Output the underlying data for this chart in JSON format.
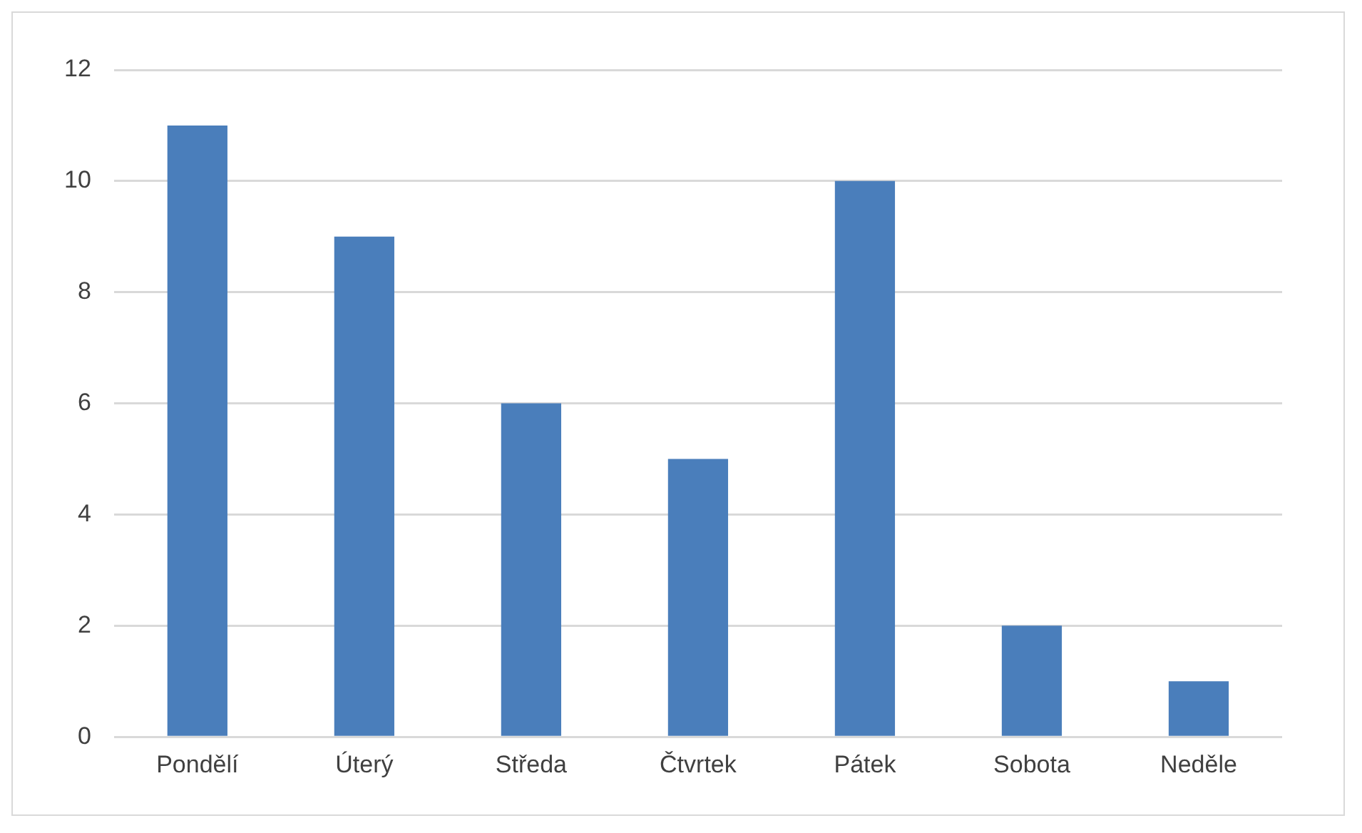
{
  "chart_data": {
    "type": "bar",
    "categories": [
      "Pondělí",
      "Úterý",
      "Středa",
      "Čtvrtek",
      "Pátek",
      "Sobota",
      "Neděle"
    ],
    "values": [
      11,
      9,
      6,
      5,
      10,
      2,
      1
    ],
    "color": "#4a7ebb",
    "ylim": [
      0,
      12
    ],
    "yticks": [
      0,
      2,
      4,
      6,
      8,
      10,
      12
    ],
    "grid": "y",
    "legend": false
  }
}
